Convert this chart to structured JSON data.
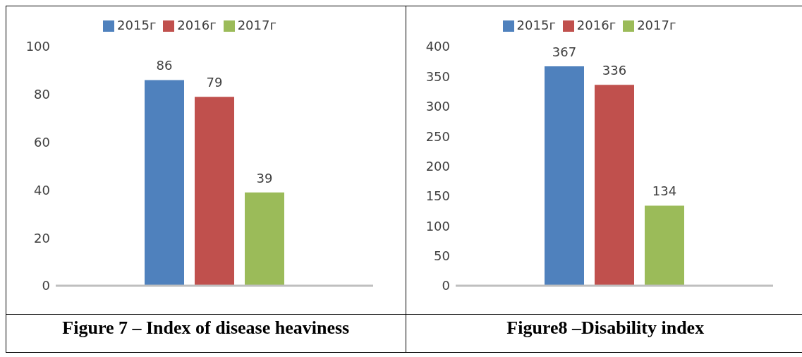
{
  "chart_data": [
    {
      "type": "bar",
      "title": "Figure 7 – Index of disease heaviness",
      "categories": [
        null
      ],
      "series": [
        {
          "name": "2015г",
          "color": "#4f81bd",
          "values": [
            86
          ]
        },
        {
          "name": "2016г",
          "color": "#c0504d",
          "values": [
            79
          ]
        },
        {
          "name": "2017г",
          "color": "#9bbb59",
          "values": [
            39
          ]
        }
      ],
      "ylim": [
        0,
        100
      ],
      "yticks": [
        0,
        20,
        40,
        60,
        80,
        100
      ],
      "data_labels": true,
      "legend": "top",
      "grid": false
    },
    {
      "type": "bar",
      "title": "Figure8 –Disability index",
      "categories": [
        null
      ],
      "series": [
        {
          "name": "2015г",
          "color": "#4f81bd",
          "values": [
            367
          ]
        },
        {
          "name": "2016г",
          "color": "#c0504d",
          "values": [
            336
          ]
        },
        {
          "name": "2017г",
          "color": "#9bbb59",
          "values": [
            134
          ]
        }
      ],
      "ylim": [
        0,
        400
      ],
      "yticks": [
        0,
        50,
        100,
        150,
        200,
        250,
        300,
        350,
        400
      ],
      "data_labels": true,
      "legend": "top",
      "grid": false
    }
  ]
}
